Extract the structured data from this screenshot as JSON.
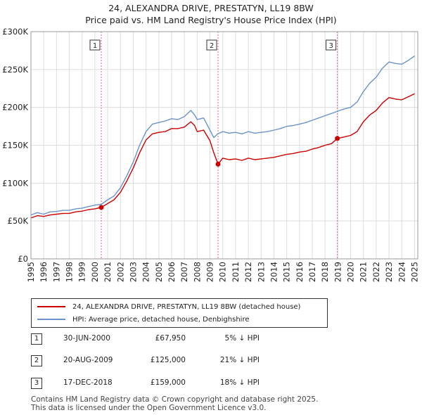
{
  "title_line1": "24, ALEXANDRA DRIVE, PRESTATYN, LL19 8BW",
  "title_line2": "Price paid vs. HM Land Registry's House Price Index (HPI)",
  "chart_data": {
    "type": "line",
    "title": "24, ALEXANDRA DRIVE, PRESTATYN, LL19 8BW — Price paid vs. HM Land Registry's House Price Index (HPI)",
    "xlabel": "",
    "ylabel": "",
    "xlim": [
      1995,
      2025.25
    ],
    "ylim": [
      0,
      300000
    ],
    "y_ticks": [
      {
        "value": 0,
        "label": "£0"
      },
      {
        "value": 50000,
        "label": "£50K"
      },
      {
        "value": 100000,
        "label": "£100K"
      },
      {
        "value": 150000,
        "label": "£150K"
      },
      {
        "value": 200000,
        "label": "£200K"
      },
      {
        "value": 250000,
        "label": "£250K"
      },
      {
        "value": 300000,
        "label": "£300K"
      }
    ],
    "x_ticks": [
      "1995",
      "1996",
      "1997",
      "1998",
      "1999",
      "2000",
      "2001",
      "2002",
      "2003",
      "2004",
      "2005",
      "2006",
      "2007",
      "2008",
      "2009",
      "2010",
      "2011",
      "2012",
      "2013",
      "2014",
      "2015",
      "2016",
      "2017",
      "2018",
      "2019",
      "2020",
      "2021",
      "2022",
      "2023",
      "2024",
      "2025"
    ],
    "grid": true,
    "series": [
      {
        "name": "HPI: Average price, detached house, Denbighshire",
        "color": "#6b93c9",
        "x": [
          1995,
          1995.5,
          1996,
          1996.5,
          1997,
          1997.5,
          1998,
          1998.5,
          1999,
          1999.5,
          2000,
          2000.5,
          2001,
          2001.5,
          2002,
          2002.5,
          2003,
          2003.5,
          2004,
          2004.5,
          2005,
          2005.5,
          2006,
          2006.5,
          2007,
          2007.5,
          2007.8,
          2008,
          2008.5,
          2009,
          2009.3,
          2009.6,
          2010,
          2010.5,
          2011,
          2011.5,
          2012,
          2012.5,
          2013,
          2013.5,
          2014,
          2014.5,
          2015,
          2015.5,
          2016,
          2016.5,
          2017,
          2017.5,
          2018,
          2018.5,
          2019,
          2019.5,
          2020,
          2020.5,
          2021,
          2021.5,
          2022,
          2022.5,
          2023,
          2023.5,
          2024,
          2024.5,
          2025
        ],
        "values": [
          58000,
          61000,
          59000,
          62000,
          62500,
          64000,
          64000,
          66000,
          67000,
          69000,
          71000,
          72000,
          78000,
          83000,
          94000,
          110000,
          128000,
          150000,
          168000,
          178000,
          180000,
          182000,
          185000,
          184000,
          188000,
          196000,
          190000,
          184000,
          186000,
          170000,
          160000,
          165000,
          168000,
          166000,
          167000,
          165000,
          168000,
          166000,
          167000,
          168000,
          170000,
          172000,
          175000,
          176000,
          178000,
          180000,
          183000,
          186000,
          189000,
          192000,
          195000,
          198000,
          200000,
          207000,
          221000,
          232000,
          240000,
          252000,
          260000,
          258000,
          257000,
          262000,
          268000
        ]
      },
      {
        "name": "24, ALEXANDRA DRIVE, PRESTATYN, LL19 8BW (detached house)",
        "color": "#cc0000",
        "x": [
          1995,
          1995.5,
          1996,
          1996.5,
          1997,
          1997.5,
          1998,
          1998.5,
          1999,
          1999.5,
          2000,
          2000.5,
          2001,
          2001.5,
          2002,
          2002.5,
          2003,
          2003.5,
          2004,
          2004.5,
          2005,
          2005.5,
          2006,
          2006.5,
          2007,
          2007.5,
          2007.8,
          2008,
          2008.5,
          2009,
          2009.3,
          2009.63,
          2010,
          2010.5,
          2011,
          2011.5,
          2012,
          2012.5,
          2013,
          2013.5,
          2014,
          2014.5,
          2015,
          2015.5,
          2016,
          2016.5,
          2017,
          2017.5,
          2018,
          2018.5,
          2018.96,
          2019.5,
          2020,
          2020.5,
          2021,
          2021.5,
          2022,
          2022.5,
          2023,
          2023.5,
          2024,
          2024.5,
          2025
        ],
        "values": [
          54000,
          57000,
          56000,
          58000,
          59000,
          60000,
          60000,
          62000,
          63000,
          65000,
          66000,
          67950,
          73000,
          78000,
          88000,
          103000,
          120000,
          140000,
          157000,
          165000,
          167000,
          168000,
          172000,
          172000,
          174000,
          181000,
          176000,
          168000,
          170000,
          156000,
          140000,
          125000,
          133000,
          131000,
          132000,
          130000,
          133000,
          131000,
          132000,
          133000,
          134000,
          136000,
          138000,
          139000,
          141000,
          142000,
          145000,
          147000,
          150000,
          152000,
          159000,
          161000,
          163000,
          168000,
          181000,
          190000,
          196000,
          206000,
          213000,
          211000,
          210000,
          214000,
          218000
        ]
      }
    ],
    "annotations": [
      {
        "label": "1",
        "x": 2000.5,
        "value": 67950
      },
      {
        "label": "2",
        "x": 2009.63,
        "value": 125000
      },
      {
        "label": "3",
        "x": 2018.96,
        "value": 159000
      }
    ]
  },
  "legend": {
    "property_label": "24, ALEXANDRA DRIVE, PRESTATYN, LL19 8BW (detached house)",
    "hpi_label": "HPI: Average price, detached house, Denbighshire",
    "property_color": "#cc0000",
    "hpi_color": "#6b93c9"
  },
  "sales": [
    {
      "num": "1",
      "date": "30-JUN-2000",
      "price": "£67,950",
      "hpi": "5% ↓ HPI"
    },
    {
      "num": "2",
      "date": "20-AUG-2009",
      "price": "£125,000",
      "hpi": "21% ↓ HPI"
    },
    {
      "num": "3",
      "date": "17-DEC-2018",
      "price": "£159,000",
      "hpi": "18% ↓ HPI"
    }
  ],
  "footer": {
    "line1": "Contains HM Land Registry data © Crown copyright and database right 2025.",
    "line2": "This data is licensed under the Open Government Licence v3.0."
  }
}
